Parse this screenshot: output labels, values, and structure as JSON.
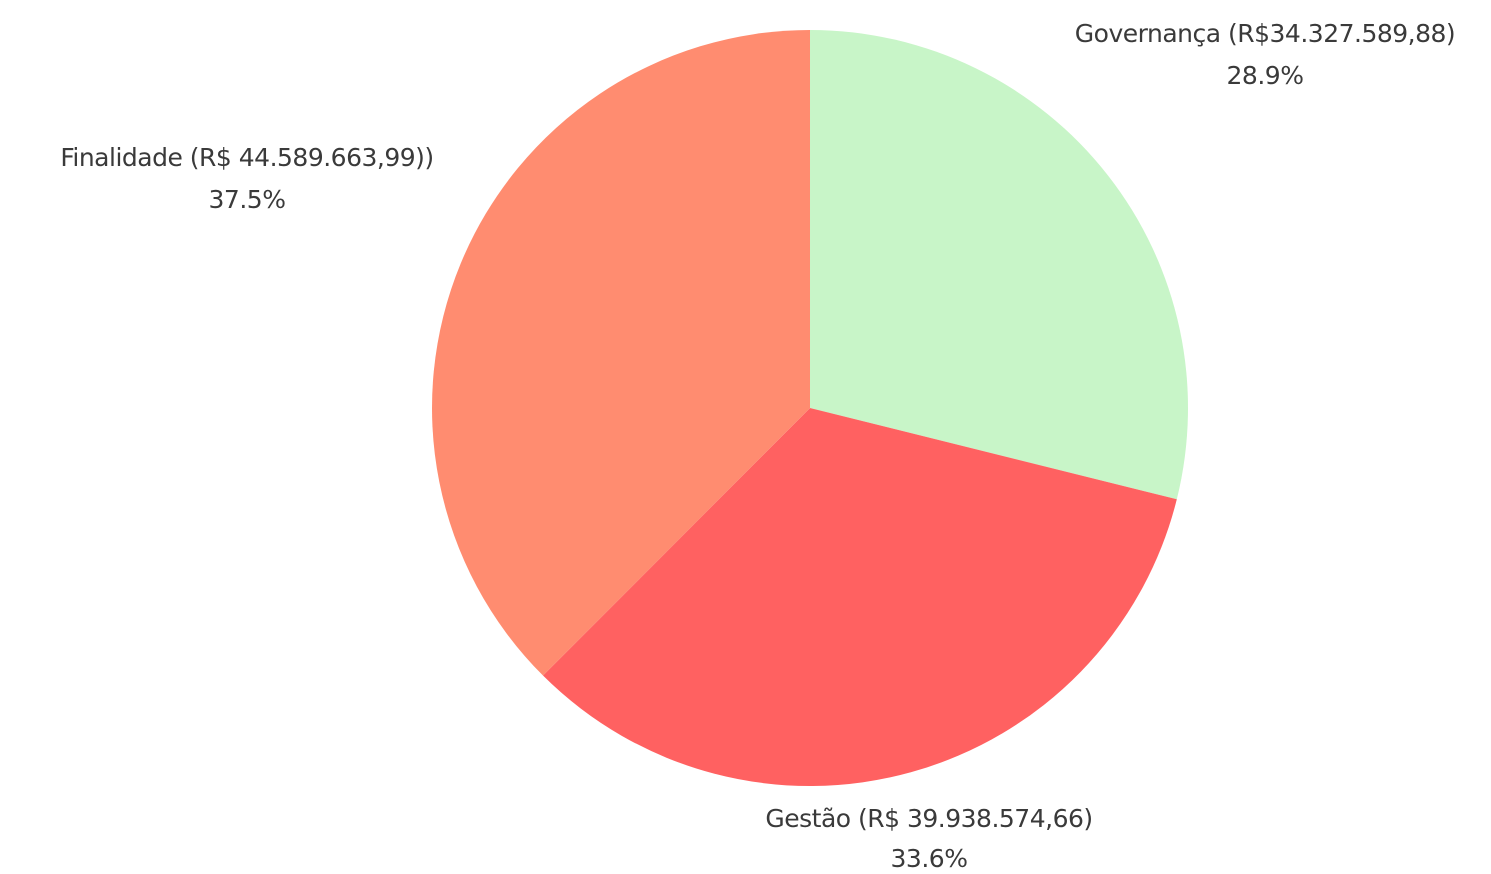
{
  "chart_data": {
    "type": "pie",
    "title": "",
    "start_angle_deg": 90,
    "direction": "clockwise",
    "slices": [
      {
        "label": "Governança (R$34.327.589,88)",
        "value": 34327589.88,
        "percent_label": "28.9%",
        "color": "#c8f5c8"
      },
      {
        "label": "Gestão (R$ 39.938.574,66)",
        "value": 39938574.66,
        "percent_label": "33.6%",
        "color": "#ff6161"
      },
      {
        "label": "Finalidade (R$ 44.589.663,99))",
        "value": 44589663.99,
        "percent_label": "37.5%",
        "color": "#ff8c70"
      }
    ]
  }
}
